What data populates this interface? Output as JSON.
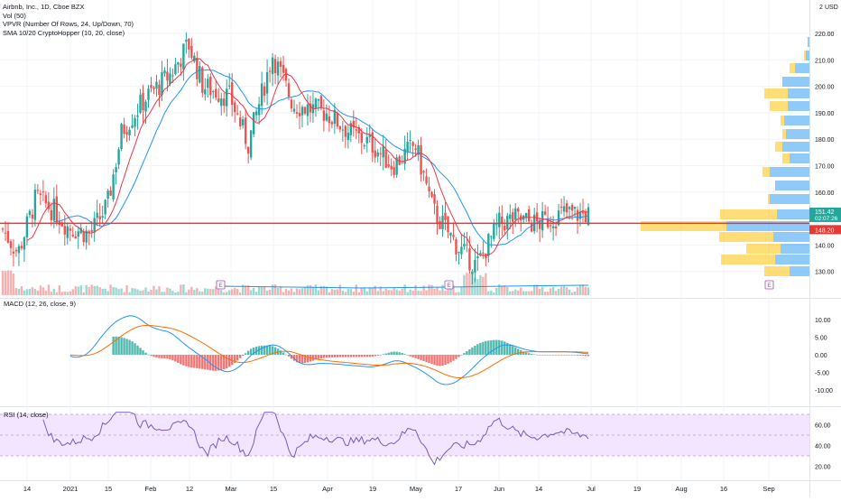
{
  "header": {
    "symbol_line": "Airbnb, Inc., 1D, Cboe BZX",
    "indicators": [
      "Vol (50)",
      "VPVR (Number Of Rows, 24, Up/Down, 70)",
      "SMA 10/20 CryptoHopper (10, 20, close)"
    ],
    "currency": "USD",
    "currency_prefix": "2"
  },
  "price_axis": {
    "ticks": [
      "220.00",
      "210.00",
      "200.00",
      "190.00",
      "180.00",
      "170.00",
      "160.00",
      "150.00",
      "140.00",
      "130.00"
    ],
    "current_price": "151.42",
    "countdown": "02:07:26",
    "level_price": "148.20"
  },
  "macd": {
    "label": "MACD (12, 26, close, 9)",
    "ticks": [
      "10.00",
      "5.00",
      "0.00",
      "-5.00",
      "-10.00"
    ]
  },
  "rsi": {
    "label": "RSI (14, close)",
    "ticks": [
      "60.00",
      "40.00",
      "20.00"
    ]
  },
  "time_axis": {
    "labels": [
      "14",
      "2021",
      "15",
      "Feb",
      "12",
      "Mar",
      "15",
      "Apr",
      "19",
      "May",
      "17",
      "Jun",
      "14",
      "Jul",
      "19",
      "Aug",
      "16",
      "Sep"
    ]
  },
  "earnings_markers": [
    "E",
    "E",
    "E"
  ],
  "colors": {
    "up": "#26a69a",
    "down": "#ef5350",
    "sma_fast": "#f23645",
    "sma_slow": "#2196f3",
    "macd_line": "#2196f3",
    "signal_line": "#ff6d00",
    "rsi_line": "#7e57c2",
    "rsi_band": "#f3e5ff",
    "level_line": "#e53935",
    "vp_up": "#2196f3",
    "vp_down": "#ffc107"
  },
  "chart_data": {
    "type": "candlestick",
    "title": "Airbnb, Inc., 1D, Cboe BZX",
    "y_unit": "USD",
    "ylim": [
      125,
      222
    ],
    "current_price": 151.42,
    "horizontal_level": 148.2,
    "x_dates": [
      "Dec 14",
      "2021",
      "Jan 15",
      "Feb",
      "Feb 12",
      "Mar",
      "Mar 15",
      "Apr",
      "Apr 19",
      "May",
      "May 17",
      "Jun",
      "Jun 14",
      "Jul",
      "Jul 19",
      "Aug",
      "Aug 16",
      "Sep"
    ],
    "close_keypoints": [
      {
        "t": "Dec 10",
        "v": 146
      },
      {
        "t": "Dec 14",
        "v": 137
      },
      {
        "t": "Dec 18",
        "v": 158
      },
      {
        "t": "Dec 24",
        "v": 153
      },
      {
        "t": "2021",
        "v": 147
      },
      {
        "t": "Jan 8",
        "v": 144
      },
      {
        "t": "Jan 15",
        "v": 155
      },
      {
        "t": "Jan 22",
        "v": 183
      },
      {
        "t": "Feb 1",
        "v": 195
      },
      {
        "t": "Feb 8",
        "v": 205
      },
      {
        "t": "Feb 12",
        "v": 216
      },
      {
        "t": "Feb 19",
        "v": 200
      },
      {
        "t": "Mar 1",
        "v": 196
      },
      {
        "t": "Mar 8",
        "v": 178
      },
      {
        "t": "Mar 15",
        "v": 212
      },
      {
        "t": "Mar 22",
        "v": 193
      },
      {
        "t": "Apr 1",
        "v": 190
      },
      {
        "t": "Apr 12",
        "v": 182
      },
      {
        "t": "Apr 19",
        "v": 178
      },
      {
        "t": "Apr 26",
        "v": 170
      },
      {
        "t": "May 3",
        "v": 178
      },
      {
        "t": "May 10",
        "v": 153
      },
      {
        "t": "May 17",
        "v": 139
      },
      {
        "t": "May 24",
        "v": 132
      },
      {
        "t": "Jun 1",
        "v": 148
      },
      {
        "t": "Jun 7",
        "v": 150
      },
      {
        "t": "Jun 14",
        "v": 148
      },
      {
        "t": "Jun 21",
        "v": 152
      },
      {
        "t": "Jun 28",
        "v": 151.42
      }
    ],
    "macd_range": [
      -12,
      14
    ],
    "rsi_range": [
      15,
      75
    ]
  }
}
